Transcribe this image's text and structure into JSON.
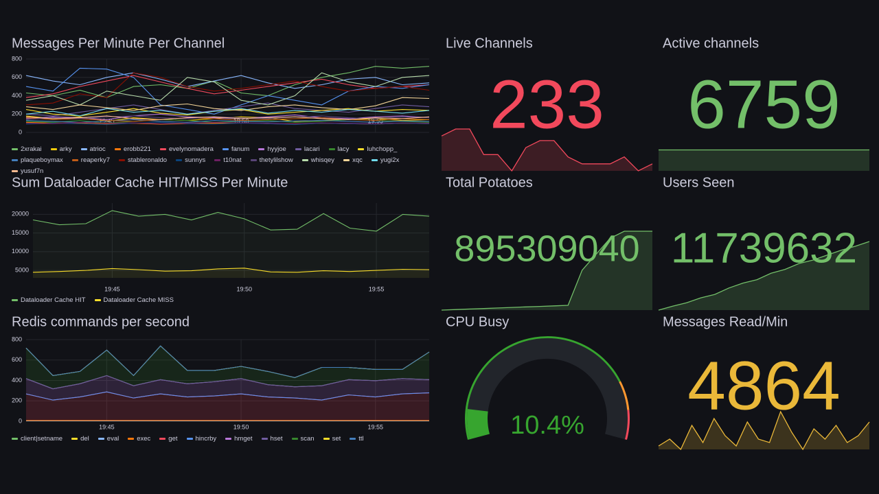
{
  "chart_data": [
    {
      "type": "line",
      "title": "Messages Per Minute Per Channel",
      "x": [
        "19:42",
        "19:43",
        "19:44",
        "19:45",
        "19:46",
        "19:47",
        "19:48",
        "19:49",
        "19:50",
        "19:51",
        "19:52",
        "19:53",
        "19:54",
        "19:55",
        "19:56",
        "19:57"
      ],
      "xticks": [
        "19:45",
        "19:50",
        "19:55"
      ],
      "ylim": [
        0,
        800
      ],
      "yticks": [
        0,
        200,
        400,
        600,
        800
      ],
      "grid": true,
      "series": [
        {
          "name": "2xrakai",
          "color": "#73bf69",
          "values": [
            430,
            400,
            460,
            380,
            500,
            520,
            480,
            560,
            430,
            400,
            520,
            600,
            650,
            720,
            700,
            720
          ]
        },
        {
          "name": "arky",
          "color": "#f2cc0c",
          "values": [
            180,
            150,
            170,
            120,
            160,
            140,
            130,
            150,
            170,
            160,
            120,
            130,
            140,
            150,
            130,
            140
          ]
        },
        {
          "name": "atrioc",
          "color": "#8ab8ff",
          "values": [
            620,
            560,
            520,
            600,
            650,
            580,
            500,
            560,
            620,
            540,
            480,
            520,
            580,
            600,
            520,
            540
          ]
        },
        {
          "name": "erobb221",
          "color": "#ff780a",
          "values": [
            110,
            100,
            105,
            95,
            100,
            90,
            95,
            100,
            105,
            95,
            90,
            100,
            95,
            90,
            100,
            95
          ]
        },
        {
          "name": "evelynomadera",
          "color": "#f2495c",
          "values": [
            380,
            420,
            500,
            560,
            620,
            550,
            480,
            420,
            460,
            500,
            540,
            580,
            520,
            480,
            500,
            520
          ]
        },
        {
          "name": "fanum",
          "color": "#5794f2",
          "values": [
            500,
            450,
            700,
            690,
            600,
            300,
            250,
            200,
            300,
            400,
            350,
            300,
            450,
            500,
            480,
            520
          ]
        },
        {
          "name": "hyyjoe",
          "color": "#b877d9",
          "values": [
            150,
            170,
            160,
            140,
            180,
            200,
            170,
            160,
            150,
            170,
            190,
            160,
            150,
            170,
            180,
            160
          ]
        },
        {
          "name": "lacari",
          "color": "#705da0",
          "values": [
            200,
            180,
            220,
            260,
            300,
            250,
            200,
            240,
            280,
            320,
            260,
            240,
            220,
            260,
            300,
            280
          ]
        },
        {
          "name": "lacy",
          "color": "#37872d",
          "values": [
            120,
            110,
            130,
            100,
            120,
            140,
            130,
            110,
            120,
            130,
            110,
            120,
            140,
            130,
            120,
            110
          ]
        },
        {
          "name": "luhchopp_",
          "color": "#fade2a",
          "values": [
            250,
            200,
            180,
            220,
            260,
            210,
            190,
            230,
            250,
            200,
            220,
            240,
            260,
            230,
            250,
            240
          ]
        },
        {
          "name": "plaqueboymax",
          "color": "#447ebc",
          "values": [
            130,
            120,
            110,
            125,
            140,
            120,
            110,
            130,
            120,
            115,
            125,
            130,
            120,
            110,
            125,
            120
          ]
        },
        {
          "name": "reaperky7",
          "color": "#c15c17",
          "values": [
            160,
            140,
            150,
            130,
            120,
            140,
            160,
            150,
            130,
            140,
            150,
            160,
            140,
            130,
            150,
            140
          ]
        },
        {
          "name": "stableronaldo",
          "color": "#890f02",
          "values": [
            300,
            320,
            420,
            380,
            650,
            600,
            500,
            450,
            480,
            520,
            560,
            500,
            450,
            480,
            500,
            460
          ]
        },
        {
          "name": "sunnys",
          "color": "#0a437c",
          "values": [
            90,
            100,
            95,
            85,
            100,
            110,
            95,
            90,
            100,
            95,
            85,
            100,
            95,
            90,
            100,
            95
          ]
        },
        {
          "name": "t10nat",
          "color": "#6d1f62",
          "values": [
            100,
            95,
            110,
            100,
            105,
            95,
            100,
            110,
            105,
            100,
            95,
            105,
            100,
            95,
            105,
            100
          ]
        },
        {
          "name": "thetylilshow",
          "color": "#584477",
          "values": [
            140,
            160,
            150,
            170,
            180,
            160,
            150,
            170,
            160,
            150,
            170,
            180,
            160,
            150,
            170,
            160
          ]
        },
        {
          "name": "whisqey",
          "color": "#b7dbab",
          "values": [
            350,
            400,
            300,
            450,
            400,
            350,
            600,
            550,
            350,
            300,
            400,
            650,
            550,
            500,
            600,
            620
          ]
        },
        {
          "name": "xqc",
          "color": "#f4d598",
          "values": [
            280,
            250,
            300,
            270,
            240,
            290,
            310,
            260,
            240,
            280,
            300,
            270,
            250,
            290,
            380,
            370
          ]
        },
        {
          "name": "yugi2x",
          "color": "#70dbed",
          "values": [
            200,
            230,
            180,
            260,
            220,
            240,
            200,
            230,
            260,
            210,
            240,
            220,
            250,
            230,
            210,
            240
          ]
        },
        {
          "name": "yusuf7n",
          "color": "#f9ba8f",
          "values": [
            170,
            150,
            160,
            180,
            150,
            140,
            160,
            170,
            150,
            160,
            170,
            150,
            140,
            160,
            150,
            170
          ]
        }
      ]
    },
    {
      "type": "line",
      "title": "Sum Dataloader Cache HIT/MISS Per Minute",
      "fill": true,
      "x": [
        "19:42",
        "19:43",
        "19:44",
        "19:45",
        "19:46",
        "19:47",
        "19:48",
        "19:49",
        "19:50",
        "19:51",
        "19:52",
        "19:53",
        "19:54",
        "19:55",
        "19:56",
        "19:57"
      ],
      "xticks": [
        "19:45",
        "19:50",
        "19:55"
      ],
      "ylim": [
        3000,
        23000
      ],
      "yticks": [
        5000,
        10000,
        15000,
        20000
      ],
      "grid": true,
      "series": [
        {
          "name": "Dataloader Cache HIT",
          "color": "#73bf69",
          "values": [
            18500,
            17200,
            17500,
            21000,
            19500,
            20000,
            18500,
            20500,
            18800,
            15800,
            16000,
            20200,
            16300,
            15500,
            20000,
            19500
          ]
        },
        {
          "name": "Dataloader Cache MISS",
          "color": "#fade2a",
          "values": [
            4500,
            4700,
            5000,
            5500,
            5200,
            4800,
            4900,
            5400,
            5600,
            4600,
            4500,
            4900,
            4700,
            5000,
            5300,
            5200
          ]
        }
      ]
    },
    {
      "type": "area",
      "stacked": true,
      "title": "Redis commands per second",
      "x": [
        "19:42",
        "19:43",
        "19:44",
        "19:45",
        "19:46",
        "19:47",
        "19:48",
        "19:49",
        "19:50",
        "19:51",
        "19:52",
        "19:53",
        "19:54",
        "19:55",
        "19:56",
        "19:57"
      ],
      "xticks": [
        "19:45",
        "19:50",
        "19:55"
      ],
      "ylim": [
        0,
        800
      ],
      "yticks": [
        0,
        200,
        400,
        600,
        800
      ],
      "grid": true,
      "series": [
        {
          "name": "client|setname",
          "color": "#73bf69",
          "values": [
            5,
            5,
            5,
            5,
            5,
            5,
            5,
            5,
            5,
            5,
            5,
            5,
            5,
            5,
            5,
            5
          ]
        },
        {
          "name": "del",
          "color": "#fade2a",
          "values": [
            0,
            0,
            0,
            0,
            0,
            0,
            0,
            0,
            0,
            0,
            0,
            0,
            0,
            0,
            0,
            0
          ]
        },
        {
          "name": "eval",
          "color": "#8ab8ff",
          "values": [
            0,
            0,
            0,
            0,
            0,
            0,
            0,
            0,
            0,
            0,
            0,
            0,
            0,
            0,
            0,
            0
          ]
        },
        {
          "name": "exec",
          "color": "#ff780a",
          "values": [
            3,
            3,
            3,
            3,
            3,
            3,
            3,
            3,
            3,
            3,
            3,
            3,
            3,
            3,
            3,
            3
          ]
        },
        {
          "name": "get",
          "color": "#f2495c",
          "values": [
            260,
            200,
            230,
            280,
            220,
            260,
            230,
            240,
            260,
            230,
            220,
            200,
            250,
            230,
            260,
            270
          ]
        },
        {
          "name": "hincrby",
          "color": "#5794f2",
          "values": [
            0,
            0,
            0,
            0,
            0,
            0,
            0,
            0,
            0,
            0,
            0,
            0,
            0,
            0,
            0,
            0
          ]
        },
        {
          "name": "hmget",
          "color": "#b877d9",
          "values": [
            150,
            110,
            130,
            160,
            120,
            140,
            130,
            140,
            150,
            120,
            110,
            140,
            150,
            160,
            150,
            130
          ]
        },
        {
          "name": "hset",
          "color": "#705da0",
          "values": [
            0,
            0,
            0,
            0,
            0,
            0,
            0,
            0,
            0,
            0,
            0,
            0,
            0,
            0,
            0,
            0
          ]
        },
        {
          "name": "scan",
          "color": "#37872d",
          "values": [
            300,
            130,
            120,
            250,
            100,
            330,
            130,
            110,
            120,
            130,
            90,
            180,
            120,
            110,
            90,
            270
          ]
        },
        {
          "name": "set",
          "color": "#fade2a",
          "values": [
            0,
            0,
            0,
            0,
            0,
            0,
            0,
            0,
            0,
            0,
            0,
            0,
            0,
            0,
            0,
            0
          ]
        },
        {
          "name": "ttl",
          "color": "#447ebc",
          "values": [
            0,
            0,
            0,
            0,
            0,
            0,
            0,
            0,
            0,
            0,
            0,
            0,
            0,
            0,
            0,
            0
          ]
        }
      ]
    },
    {
      "type": "stat",
      "title": "Live Channels",
      "value": 233,
      "color": "#f2495c",
      "sparkline": [
        245,
        248,
        248,
        237,
        237,
        230,
        240,
        243,
        243,
        236,
        233,
        233,
        233,
        236,
        230,
        233
      ]
    },
    {
      "type": "stat",
      "title": "Active channels",
      "value": 6759,
      "color": "#73bf69",
      "sparkline": [
        6759,
        6759,
        6759,
        6759,
        6759,
        6759,
        6759,
        6759,
        6759,
        6759,
        6759,
        6759,
        6759,
        6759,
        6759,
        6759
      ]
    },
    {
      "type": "stat",
      "title": "Total Potatoes",
      "value": 895309040,
      "color": "#73bf69",
      "sparkline": [
        880500000,
        880600000,
        880700000,
        880800000,
        880900000,
        881000000,
        881100000,
        881200000,
        881300000,
        881400000,
        888000000,
        891000000,
        894000000,
        895309040,
        895309040,
        895309040
      ]
    },
    {
      "type": "stat",
      "title": "Users Seen",
      "value": 11739632,
      "color": "#73bf69",
      "sparkline": [
        11600000,
        11608000,
        11615000,
        11625000,
        11632000,
        11645000,
        11655000,
        11662000,
        11675000,
        11683000,
        11695000,
        11702000,
        11712000,
        11722000,
        11730000,
        11739632
      ]
    },
    {
      "type": "gauge",
      "title": "CPU Busy",
      "values": [
        10.4
      ],
      "value_labels": [
        "10.4%"
      ],
      "range": [
        0,
        100
      ],
      "color": "#37a52f",
      "thresholds": [
        {
          "value": 0,
          "color": "#37a52f"
        },
        {
          "value": 80,
          "color": "#ff9830"
        },
        {
          "value": 90,
          "color": "#f2495c"
        }
      ]
    },
    {
      "type": "stat",
      "title": "Messages Read/Min",
      "value": 4864,
      "color": "#eab839",
      "sparkline": [
        4300,
        4500,
        4200,
        4900,
        4400,
        5100,
        4600,
        4300,
        5000,
        4500,
        4400,
        5300,
        4700,
        4200,
        4800,
        4500,
        4900,
        4400,
        4600,
        5000
      ]
    }
  ]
}
